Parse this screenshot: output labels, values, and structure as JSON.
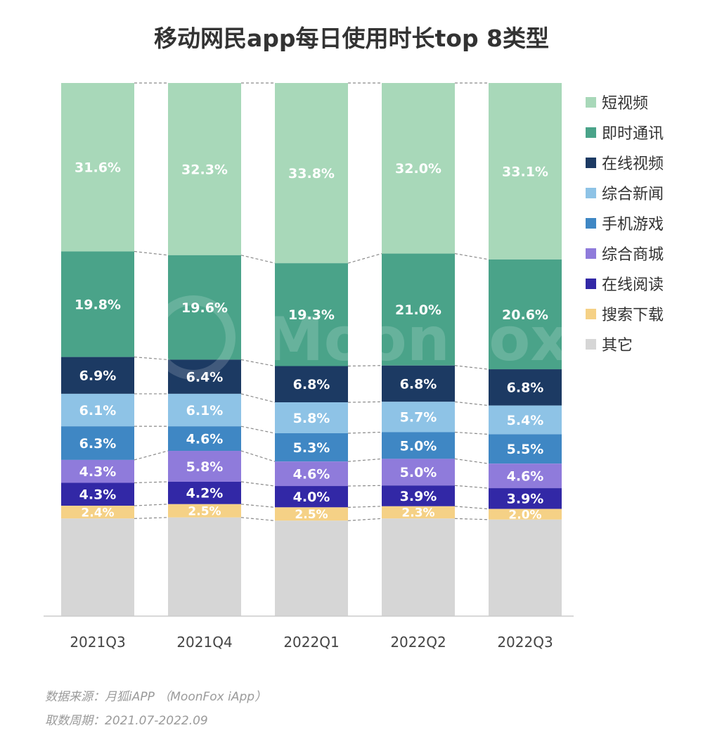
{
  "title": "移动网民app每日使用时长top 8类型",
  "chart_data": {
    "type": "bar",
    "stacked": true,
    "categories": [
      "2021Q3",
      "2021Q4",
      "2022Q1",
      "2022Q2",
      "2022Q3"
    ],
    "series": [
      {
        "name": "短视频",
        "color": "#a8d8b9",
        "values": [
          31.6,
          32.3,
          33.8,
          32.0,
          33.1
        ]
      },
      {
        "name": "即时通讯",
        "color": "#4aa389",
        "values": [
          19.8,
          19.6,
          19.3,
          21.0,
          20.6
        ]
      },
      {
        "name": "在线视频",
        "color": "#1c3a63",
        "values": [
          6.9,
          6.4,
          6.8,
          6.8,
          6.8
        ]
      },
      {
        "name": "综合新闻",
        "color": "#8ec3e6",
        "values": [
          6.1,
          6.1,
          5.8,
          5.7,
          5.4
        ]
      },
      {
        "name": "手机游戏",
        "color": "#3f87c4",
        "values": [
          6.3,
          4.6,
          5.3,
          5.0,
          5.5
        ]
      },
      {
        "name": "综合商城",
        "color": "#8f7bdb",
        "values": [
          4.3,
          5.8,
          4.6,
          5.0,
          4.6
        ]
      },
      {
        "name": "在线阅读",
        "color": "#3228a6",
        "values": [
          4.3,
          4.2,
          4.0,
          3.9,
          3.9
        ]
      },
      {
        "name": "搜索下载",
        "color": "#f5d186",
        "values": [
          2.4,
          2.5,
          2.5,
          2.3,
          2.0
        ]
      },
      {
        "name": "其它",
        "color": "#d6d6d6",
        "values": [
          18.3,
          18.5,
          17.9,
          18.3,
          18.1
        ]
      }
    ],
    "labeled_series_count": 8,
    "ylim": [
      0,
      100
    ],
    "grid": false,
    "legend_position": "right",
    "connector_lines": "dashed"
  },
  "watermark": "MoonFox",
  "footnotes": {
    "source": "数据来源：月狐iAPP （MoonFox iApp）",
    "period": "取数周期：2021.07-2022.09"
  }
}
